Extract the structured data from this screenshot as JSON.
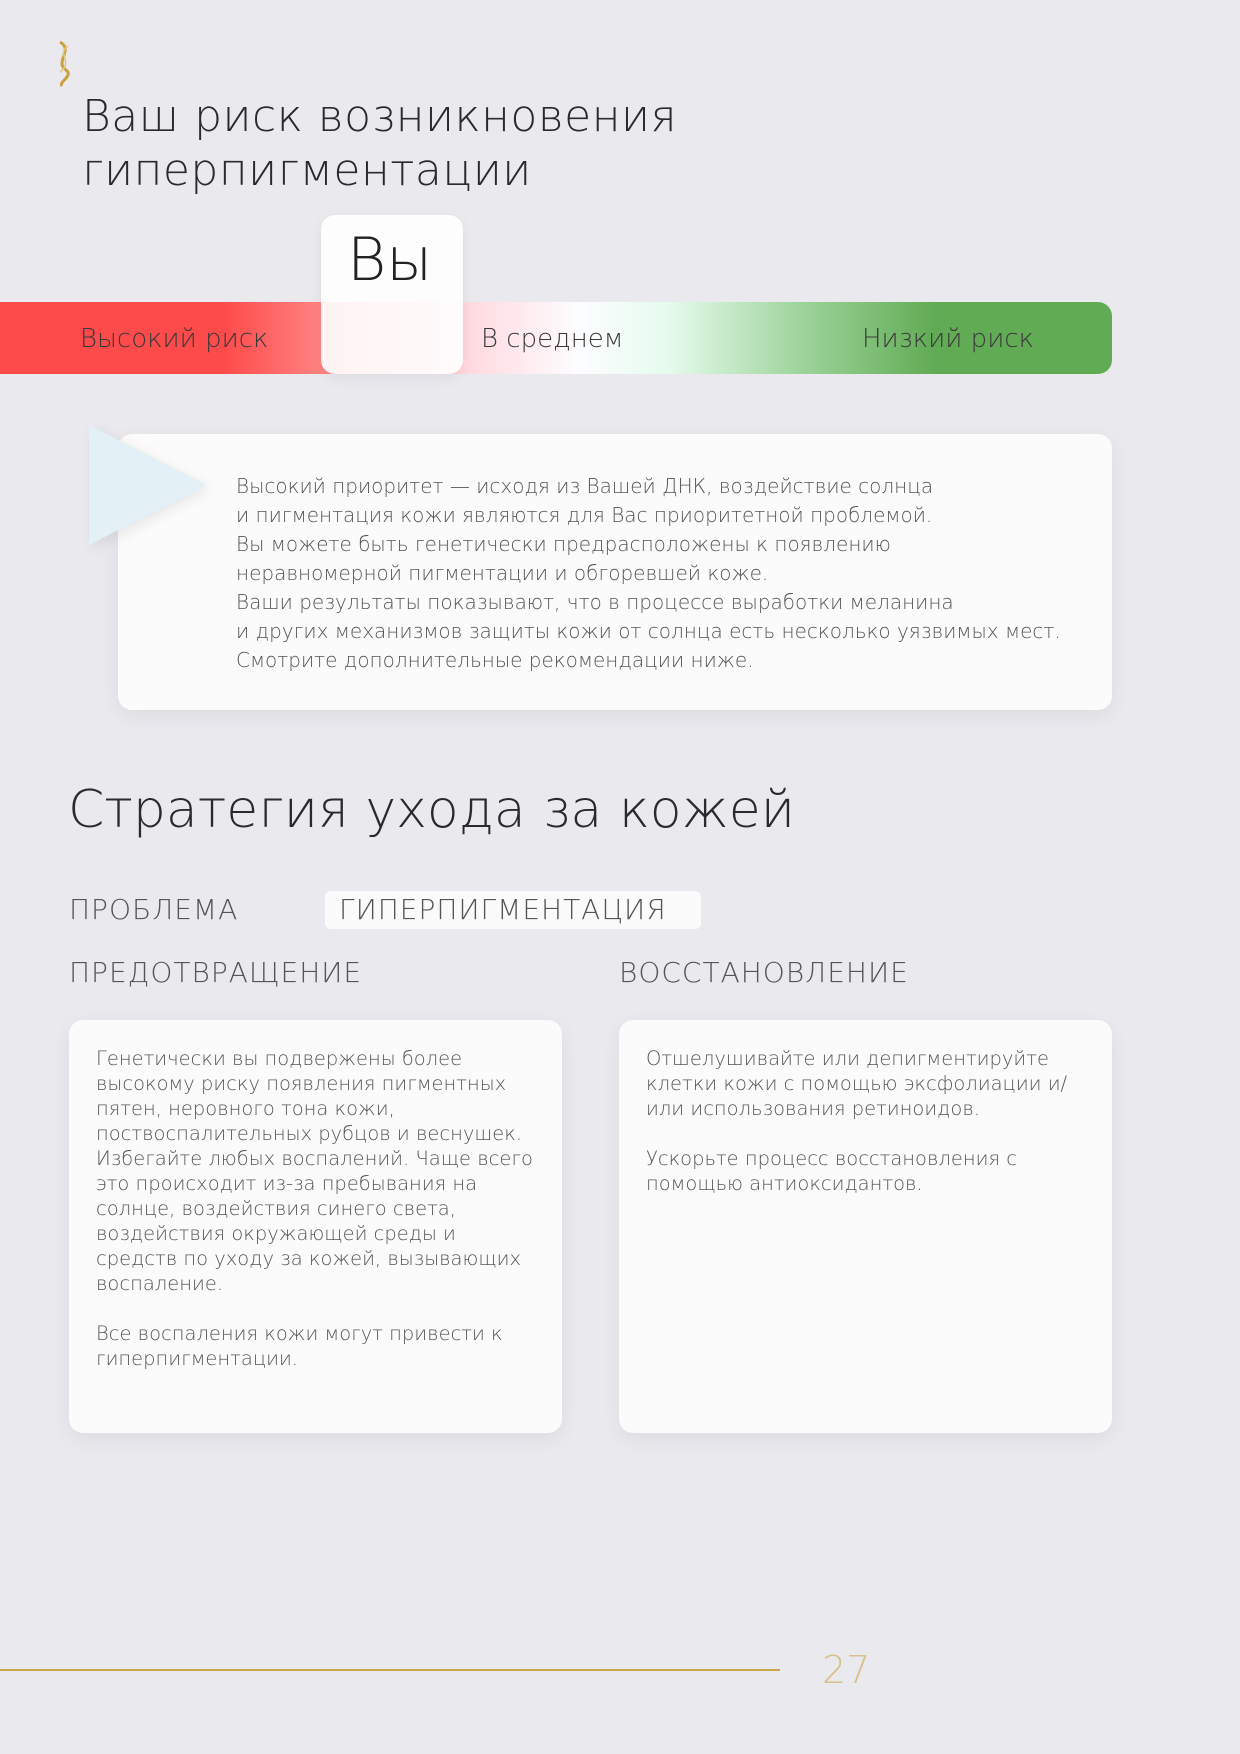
{
  "logo": {
    "icon": "dna-helix-gold-icon"
  },
  "title": [
    "Ваш риск возникновения",
    "гиперпигментации"
  ],
  "risk_scale": {
    "marker_label": "Вы",
    "labels": [
      "Высокий риск",
      "В среднем",
      "Низкий риск"
    ],
    "colors": {
      "high": "#fd4a4a",
      "mid": "#ffffff",
      "low": "#62ab55"
    },
    "level": "Высокий риск"
  },
  "info": {
    "lines": [
      "Высокий приоритет — исходя из Вашей ДНК, воздействие солнца",
      "и пигментация кожи являются для Вас приоритетной проблемой.",
      "Вы можете быть генетически предрасположены к появлению",
      "неравномерной пигментации и обгоревшей коже.",
      "Ваши результаты показывают, что в процессе выработки меланина",
      "и других механизмов защиты кожи от солнца есть несколько уязвимых мест.",
      "Смотрите дополнительные рекомендации ниже."
    ]
  },
  "strategy": {
    "heading": "Стратегия ухода за кожей",
    "problem_label": "ПРОБЛЕМА",
    "problem_value": "ГИПЕРПИГМЕНТАЦИЯ",
    "prevention": {
      "label": "ПРЕДОТВРАЩЕНИЕ",
      "paragraphs": [
        "Генетически вы подвержены более высокому риску появления пигментных пятен, неровного тона кожи, поствоспалительных рубцов и веснушек. Избегайте любых воспалений. Чаще всего это происходит из-за пребывания на солнце, воздействия синего света, воздействия окружающей среды и средств по уходу за кожей, вызывающих воспаление.",
        "Все воспаления кожи могут привести к гиперпигментации."
      ]
    },
    "recovery": {
      "label": "ВОССТАНОВЛЕНИЕ",
      "paragraphs": [
        "Отшелушивайте или депигментируйте клетки кожи с помощью эксфолиации и/или использования ретиноидов.",
        "Ускорьте процесс восстановления с помощью антиоксидантов."
      ]
    }
  },
  "footer": {
    "page_number": "27",
    "accent": "#c8a64a"
  }
}
